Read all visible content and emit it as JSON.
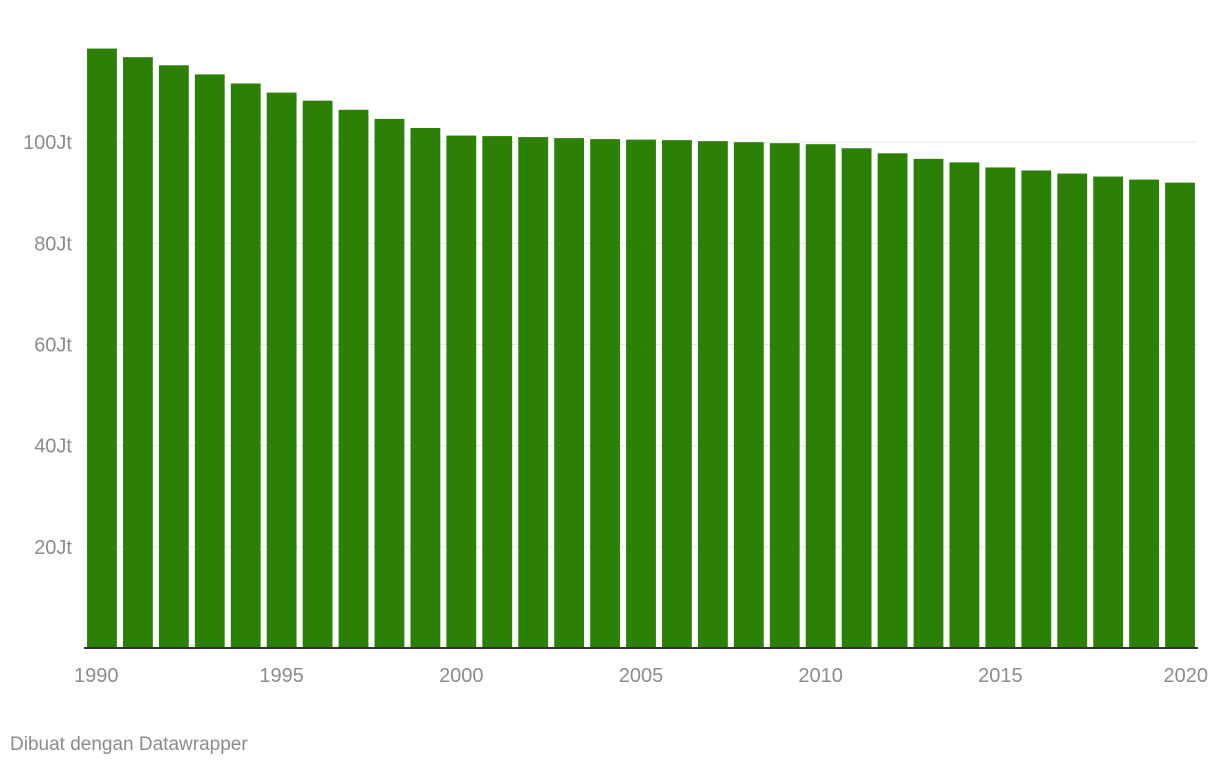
{
  "chart_data": {
    "type": "bar",
    "x": [
      1990,
      1991,
      1992,
      1993,
      1994,
      1995,
      1996,
      1997,
      1998,
      1999,
      2000,
      2001,
      2002,
      2003,
      2004,
      2005,
      2006,
      2007,
      2008,
      2009,
      2010,
      2011,
      2012,
      2013,
      2014,
      2015,
      2016,
      2017,
      2018,
      2019,
      2020
    ],
    "values": [
      118.5,
      116.8,
      115.2,
      113.4,
      111.6,
      109.8,
      108.2,
      106.4,
      104.6,
      102.8,
      101.3,
      101.2,
      101.0,
      100.8,
      100.6,
      100.5,
      100.4,
      100.2,
      100.0,
      99.8,
      99.6,
      98.8,
      97.8,
      96.7,
      96.0,
      95.0,
      94.4,
      93.8,
      93.2,
      92.6,
      92.0
    ],
    "ylim": [
      0,
      120
    ],
    "yticks": [
      {
        "value": 20,
        "label": "20Jt"
      },
      {
        "value": 40,
        "label": "40Jt"
      },
      {
        "value": 60,
        "label": "60Jt"
      },
      {
        "value": 80,
        "label": "80Jt"
      },
      {
        "value": 100,
        "label": "100Jt"
      }
    ],
    "xticks": [
      1990,
      1995,
      2000,
      2005,
      2010,
      2015,
      2020
    ],
    "grid": true,
    "bar_color": "#2d8006",
    "title": "",
    "xlabel": "",
    "ylabel": ""
  },
  "footer": {
    "credit": "Dibuat dengan Datawrapper"
  }
}
